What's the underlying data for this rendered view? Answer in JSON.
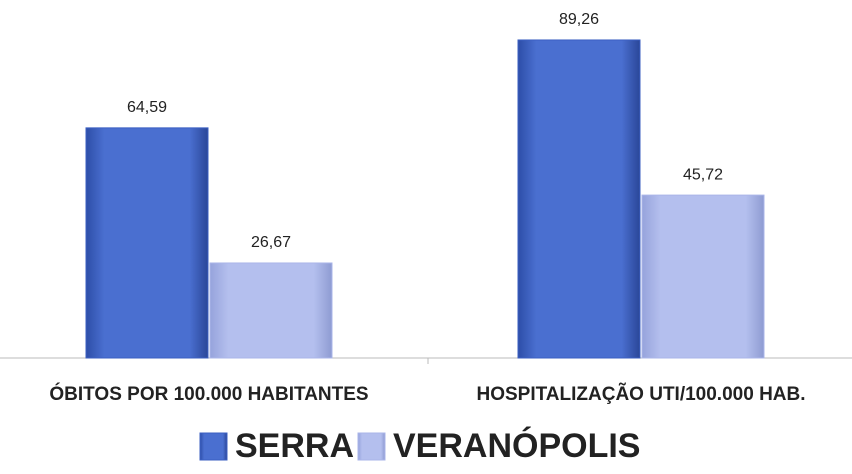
{
  "chart_data": {
    "type": "bar",
    "categories": [
      "ÓBITOS POR 100.000 HABITANTES",
      "HOSPITALIZAÇÃO UTI/100.000 HAB."
    ],
    "series": [
      {
        "name": "SERRA",
        "color": "#3b5fc2",
        "values": [
          64.59,
          89.26
        ],
        "value_labels": [
          "64,59",
          "89,26"
        ]
      },
      {
        "name": "VERANÓPOLIS",
        "color": "#aab5e8",
        "values": [
          26.67,
          45.72
        ],
        "value_labels": [
          "26,67",
          "45,72"
        ]
      }
    ],
    "legend": "bottom"
  }
}
